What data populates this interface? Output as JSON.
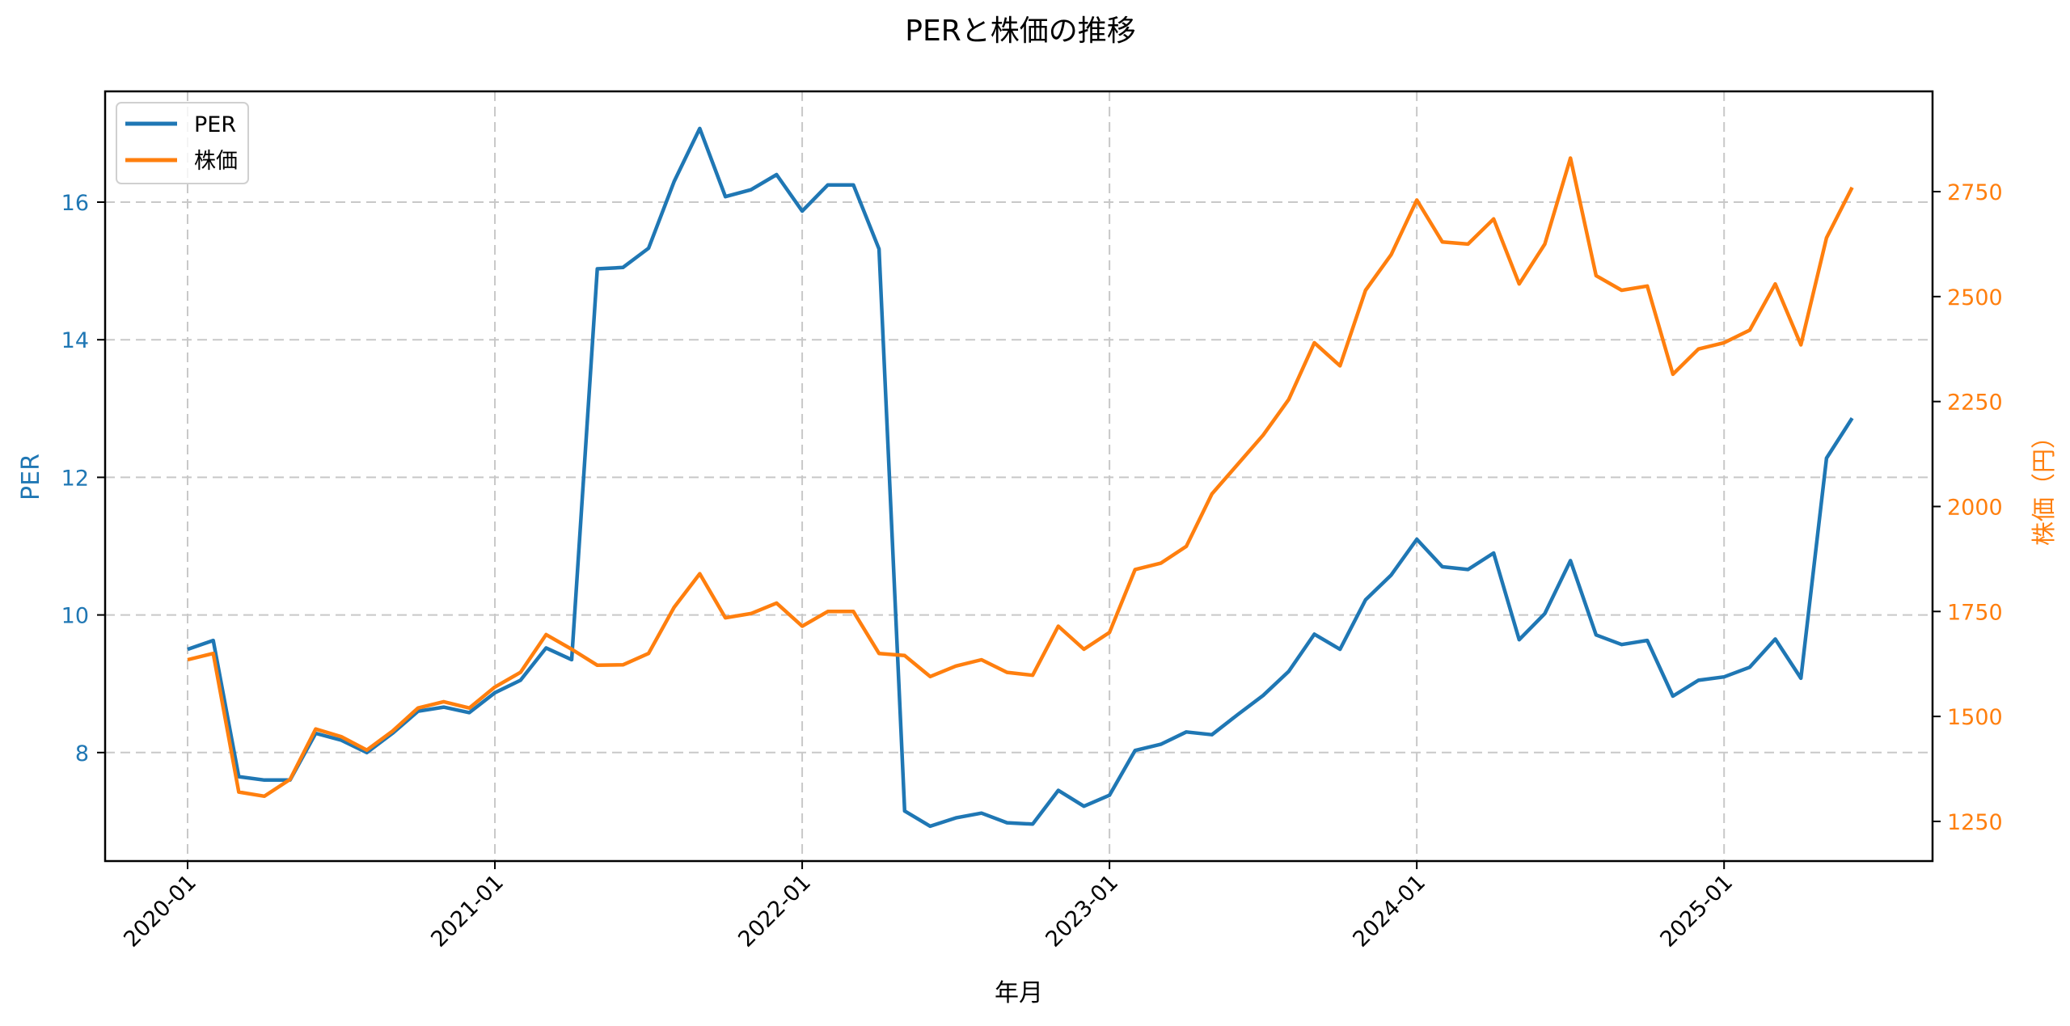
{
  "chart_data": {
    "type": "line",
    "title": "PERと株価の推移",
    "xlabel": "年月",
    "ylabel": "PER",
    "ylabel_right": "株価（円）",
    "x_tick_labels": [
      "2020-01",
      "2021-01",
      "2022-01",
      "2023-01",
      "2024-01",
      "2025-01"
    ],
    "y_ticks_left": [
      8,
      10,
      12,
      14,
      16
    ],
    "y_ticks_right": [
      1250,
      1500,
      1750,
      2000,
      2250,
      2500,
      2750
    ],
    "ylim": [
      6.5,
      17.4
    ],
    "ylim_right": [
      1155,
      2950
    ],
    "grid": true,
    "legend_position": "upper left",
    "x": [
      "2020-01",
      "2020-02",
      "2020-03",
      "2020-04",
      "2020-05",
      "2020-06",
      "2020-07",
      "2020-08",
      "2020-09",
      "2020-10",
      "2020-11",
      "2020-12",
      "2021-01",
      "2021-02",
      "2021-03",
      "2021-04",
      "2021-05",
      "2021-06",
      "2021-07",
      "2021-08",
      "2021-09",
      "2021-10",
      "2021-11",
      "2021-12",
      "2022-01",
      "2022-02",
      "2022-03",
      "2022-04",
      "2022-05",
      "2022-06",
      "2022-07",
      "2022-08",
      "2022-09",
      "2022-10",
      "2022-11",
      "2022-12",
      "2023-01",
      "2023-02",
      "2023-03",
      "2023-04",
      "2023-05",
      "2023-06",
      "2023-07",
      "2023-08",
      "2023-09",
      "2023-10",
      "2023-11",
      "2023-12",
      "2024-01",
      "2024-02",
      "2024-03",
      "2024-04",
      "2024-05",
      "2024-06",
      "2024-07",
      "2024-08",
      "2024-09",
      "2024-10",
      "2024-11",
      "2024-12",
      "2025-01",
      "2025-02",
      "2025-03",
      "2025-04",
      "2025-05",
      "2025-06"
    ],
    "series": [
      {
        "name": "PER",
        "axis": "left",
        "color": "#1f77b4",
        "values": [
          9.5,
          9.63,
          7.65,
          7.6,
          7.6,
          8.28,
          8.18,
          8.0,
          8.28,
          8.6,
          8.66,
          8.58,
          8.87,
          9.05,
          9.52,
          9.35,
          15.03,
          15.05,
          15.33,
          16.3,
          17.07,
          16.08,
          16.18,
          16.4,
          15.87,
          16.25,
          16.25,
          15.32,
          7.15,
          6.93,
          7.05,
          7.12,
          6.98,
          6.96,
          7.45,
          7.22,
          7.38,
          8.03,
          8.12,
          8.3,
          8.26,
          8.55,
          8.83,
          9.18,
          9.72,
          9.5,
          10.22,
          10.58,
          11.1,
          10.7,
          10.66,
          10.9,
          9.64,
          10.02,
          10.79,
          9.71,
          9.57,
          9.63,
          8.82,
          9.05,
          9.1,
          9.24,
          9.65,
          9.08,
          12.28,
          12.86
        ]
      },
      {
        "name": "株価",
        "axis": "right",
        "color": "#ff7f0e",
        "values": [
          1635,
          1650,
          1320,
          1310,
          1350,
          1470,
          1452,
          1420,
          1465,
          1520,
          1535,
          1520,
          1570,
          1605,
          1695,
          1660,
          1622,
          1623,
          1650,
          1760,
          1840,
          1735,
          1745,
          1770,
          1715,
          1750,
          1750,
          1650,
          1645,
          1595,
          1620,
          1635,
          1605,
          1598,
          1715,
          1660,
          1700,
          1850,
          1865,
          1905,
          2030,
          2100,
          2170,
          2255,
          2390,
          2335,
          2515,
          2600,
          2730,
          2630,
          2625,
          2685,
          2530,
          2625,
          2830,
          2550,
          2515,
          2525,
          2315,
          2375,
          2390,
          2420,
          2530,
          2385,
          2640,
          2760
        ]
      }
    ]
  },
  "legend": {
    "items": [
      {
        "label": "PER",
        "color": "#1f77b4"
      },
      {
        "label": "株価",
        "color": "#ff7f0e"
      }
    ]
  }
}
